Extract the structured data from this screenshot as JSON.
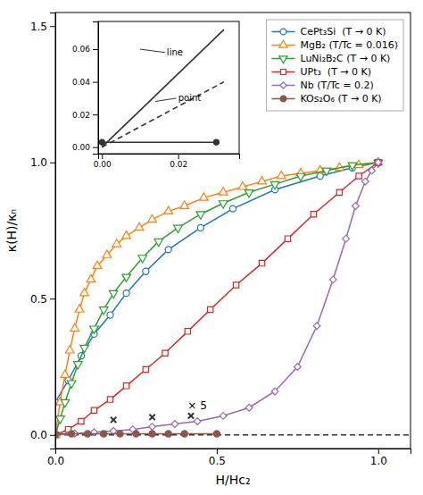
{
  "chart_data": {
    "type": "line",
    "xlabel": "H/Hc₂",
    "ylabel": "κ(H)/κₙ",
    "xlim": [
      0.0,
      1.1
    ],
    "ylim": [
      -0.05,
      1.55
    ],
    "xticks": [
      {
        "value": 0.0,
        "label": "0.0"
      },
      0.5,
      {
        "value": 1.0,
        "label": "1.0"
      }
    ],
    "yticks": [
      {
        "value": 0.0,
        "label": "0.0"
      },
      0.5,
      {
        "value": 1.0,
        "label": "1.0"
      },
      1.5
    ],
    "grid": false,
    "legend": "upper right",
    "series": [
      {
        "x": [
          0.0,
          1.1
        ],
        "values": [
          0.0,
          0.0
        ],
        "line_style": "dashed"
      },
      {
        "name": "CePt₃Si  (T → 0 K)",
        "marker": "circle",
        "line_style": "solid",
        "x": [
          0.0,
          0.04,
          0.08,
          0.12,
          0.17,
          0.22,
          0.28,
          0.35,
          0.45,
          0.55,
          0.68,
          0.82,
          0.92,
          1.0
        ],
        "values": [
          0.12,
          0.2,
          0.29,
          0.37,
          0.44,
          0.52,
          0.6,
          0.68,
          0.76,
          0.83,
          0.9,
          0.95,
          0.98,
          1.0
        ]
      },
      {
        "name": "MgB₂ (T/Tc = 0.016)",
        "marker": "triangle-up",
        "line_style": "solid",
        "x": [
          0.0,
          0.015,
          0.03,
          0.045,
          0.06,
          0.075,
          0.09,
          0.11,
          0.13,
          0.16,
          0.19,
          0.22,
          0.26,
          0.3,
          0.35,
          0.4,
          0.46,
          0.52,
          0.58,
          0.64,
          0.7,
          0.76,
          0.82,
          0.88,
          0.94,
          1.0
        ],
        "values": [
          0.0,
          0.12,
          0.22,
          0.31,
          0.39,
          0.46,
          0.52,
          0.57,
          0.62,
          0.66,
          0.7,
          0.73,
          0.76,
          0.79,
          0.82,
          0.84,
          0.87,
          0.89,
          0.91,
          0.93,
          0.95,
          0.96,
          0.97,
          0.98,
          0.99,
          1.0
        ]
      },
      {
        "name": "LuNi₂B₂C (T → 0 K)",
        "marker": "triangle-down",
        "line_style": "solid",
        "x": [
          0.0,
          0.015,
          0.03,
          0.05,
          0.07,
          0.09,
          0.12,
          0.15,
          0.18,
          0.22,
          0.27,
          0.32,
          0.38,
          0.45,
          0.52,
          0.6,
          0.68,
          0.76,
          0.84,
          0.92,
          1.0
        ],
        "values": [
          0.0,
          0.06,
          0.12,
          0.19,
          0.26,
          0.32,
          0.39,
          0.46,
          0.52,
          0.58,
          0.65,
          0.71,
          0.76,
          0.81,
          0.85,
          0.89,
          0.92,
          0.95,
          0.97,
          0.99,
          1.0
        ]
      },
      {
        "name": "UPt₃  (T → 0 K)",
        "marker": "square",
        "line_style": "solid",
        "x": [
          0.0,
          0.04,
          0.08,
          0.12,
          0.17,
          0.22,
          0.28,
          0.34,
          0.41,
          0.48,
          0.56,
          0.64,
          0.72,
          0.8,
          0.88,
          0.94,
          1.0
        ],
        "values": [
          0.0,
          0.02,
          0.05,
          0.09,
          0.13,
          0.18,
          0.24,
          0.3,
          0.38,
          0.46,
          0.55,
          0.63,
          0.72,
          0.81,
          0.89,
          0.95,
          1.0
        ]
      },
      {
        "name": "Nb (T/Tc = 0.2)",
        "marker": "diamond",
        "line_style": "solid",
        "x": [
          0.0,
          0.06,
          0.12,
          0.18,
          0.24,
          0.3,
          0.37,
          0.44,
          0.52,
          0.6,
          0.68,
          0.75,
          0.81,
          0.86,
          0.9,
          0.93,
          0.96,
          0.98,
          1.0
        ],
        "values": [
          0.0,
          0.005,
          0.01,
          0.015,
          0.02,
          0.03,
          0.04,
          0.05,
          0.07,
          0.1,
          0.16,
          0.25,
          0.4,
          0.57,
          0.72,
          0.84,
          0.93,
          0.97,
          1.0
        ]
      },
      {
        "name": "KOs₂O₆ (T → 0 K)",
        "marker": "circle-filled",
        "line_style": "solid",
        "x": [
          0.0,
          0.05,
          0.1,
          0.15,
          0.2,
          0.25,
          0.3,
          0.35,
          0.4,
          0.5
        ],
        "values": [
          0.004,
          0.004,
          0.004,
          0.004,
          0.004,
          0.004,
          0.004,
          0.004,
          0.004,
          0.004
        ]
      },
      {
        "marker": "x",
        "line_style": "none",
        "x": [
          0.18,
          0.3,
          0.42
        ],
        "values": [
          0.055,
          0.065,
          0.07
        ]
      }
    ],
    "annotations": [
      {
        "text": "× 5",
        "x": 0.41,
        "y": 0.083
      }
    ],
    "inset": {
      "xlim": [
        -0.001,
        0.036
      ],
      "ylim": [
        -0.004,
        0.077
      ],
      "xticks": [
        {
          "value": 0.0,
          "label": "0.00"
        },
        {
          "value": 0.02,
          "label": "0.02"
        }
      ],
      "yticks": [
        {
          "value": 0.0,
          "label": "0.00"
        },
        {
          "value": 0.02,
          "label": "0.02"
        },
        {
          "value": 0.04,
          "label": "0.04"
        },
        {
          "value": 0.06,
          "label": "0.06"
        }
      ],
      "series": [
        {
          "x": [
            0.0,
            0.032
          ],
          "values": [
            0.0,
            0.072
          ],
          "line_style": "solid"
        },
        {
          "x": [
            0.0,
            0.032
          ],
          "values": [
            0.0,
            0.04
          ],
          "line_style": "dashed"
        },
        {
          "x": [
            0.0,
            0.03
          ],
          "values": [
            0.003,
            0.003
          ],
          "line_style": "solid",
          "marker": "circle-filled"
        }
      ],
      "annotations": [
        {
          "text": "line",
          "x": 0.017,
          "y": 0.058,
          "arrow_x": 0.01,
          "arrow_y": 0.06
        },
        {
          "text": "point",
          "x": 0.02,
          "y": 0.03,
          "arrow_x": 0.014,
          "arrow_y": 0.028
        }
      ]
    }
  }
}
